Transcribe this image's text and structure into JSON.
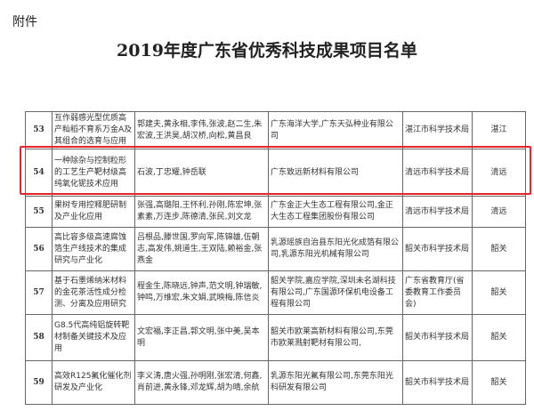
{
  "header": {
    "attachment": "附件",
    "title": "2019年度广东省优秀科技成果项目名单"
  },
  "highlight_color": "#e8232a",
  "rows": [
    {
      "no": "53",
      "project": "互作弱感光型优质高产籼稻不育系万金A及其组合的选育与应用",
      "people": "郭建夫,黄永相,李伟,张波,赵二生,朱宏波,王洪昊,胡汉桥,向松,黄昌良",
      "units": "广东海洋大学,广东天弘种业有限公司",
      "recommender": "湛江市科学技术局",
      "region": "湛江"
    },
    {
      "no": "54",
      "project": "一种除杂与控制粒形的工艺生产靶材级高纯氧化铌技术应用",
      "people": "石波,丁忠耀,钟岳联",
      "units": "广东致远新材料有限公司",
      "recommender": "清远市科学技术局",
      "region": "清远"
    },
    {
      "no": "55",
      "project": "果树专用控释肥研制及产业化应用",
      "people": "张强,高璐阳,王怀利,孙刚,陈宏坤,张素素,万连步,陈德清,张民,刘文龙",
      "units": "广东金正大生态工程有限公司,金正大生态工程集团股份有限公司",
      "recommender": "清远市科学技术局",
      "region": "清远"
    },
    {
      "no": "56",
      "project": "高比容多级高速腐蚀箔生产线技术的集成研究与产业化",
      "people": "吕根品,滕世国,罗向军,陈锦雄,伍朝志,高发伟,姚道生,王双陆,赖裕金,张燕金",
      "units": "乳源瑶族自治县东阳光化成箔有限公司,乳源东阳光机械有限公司",
      "recommender": "韶关市科学技术局",
      "region": "韶关"
    },
    {
      "no": "57",
      "project": "基于石墨烯纳米材料的金花茶活性成分检测、分离及应用研究",
      "people": "程金生,陈晓远,钟声,范文明,钟瑞敏,钟鸣,万维宏,朱文娟,武映梅,陈信炎",
      "units": "韶关学院,嘉应学院,深圳未名湖科技有限公司,广东国源环保机电设备工程有限公司",
      "recommender": "广东省教育厅(省委教育工作委员会)",
      "region": "韶关"
    },
    {
      "no": "58",
      "project": "G8.5代高纯铝旋转靶材制备关键技术及应用",
      "people": "文宏福,李正昌,郭文明,张中美,吴本明",
      "units": "韶关市欧莱高新材料有限公司,东莞市欧莱溅射靶材有限公司,",
      "recommender": "韶关市科学技术局",
      "region": "韶关"
    },
    {
      "no": "59",
      "project": "高效R125氟化催化剂研发及产业化",
      "people": "李义涛,唐火强,孙明刚,张宏清,何鑫,肖前进,黄永锋,邓龙辉,胡为晴,余航",
      "units": "乳源东阳光氟有限公司,东莞东阳光科研发有限公司",
      "recommender": "韶关市科学技术局",
      "region": "韶关"
    }
  ]
}
